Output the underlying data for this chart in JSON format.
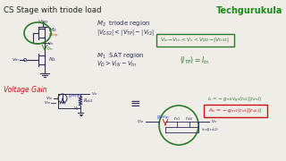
{
  "title": "CS Stage with triode load",
  "brand": "Techgurukula",
  "bg_color": "#f0ede8",
  "title_color": "#222222",
  "brand_color": "#1a8a1a",
  "green_color": "#2a7a2a",
  "blue_color": "#1a3acc",
  "red_color": "#cc1111",
  "dark_color": "#2a2a2a",
  "pen_color": "#2a2a55"
}
